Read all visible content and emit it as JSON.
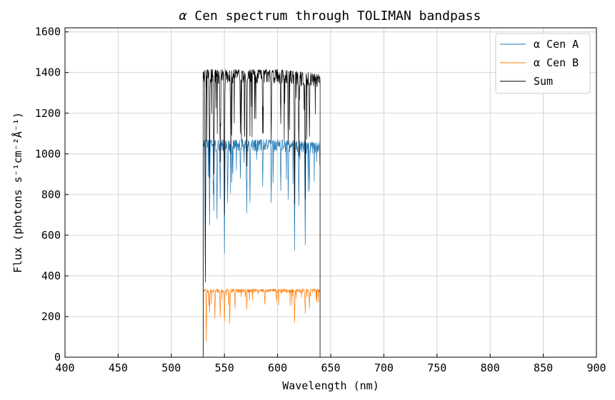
{
  "chart_data": {
    "type": "line",
    "title_greek": "α",
    "title": "Cen spectrum through TOLIMAN bandpass",
    "xlabel": "Wavelength (nm)",
    "ylabel": "Flux (photons s⁻¹cm⁻²Å⁻¹)",
    "xlim": [
      400,
      900
    ],
    "ylim": [
      0,
      1620
    ],
    "x_ticks": [
      400,
      450,
      500,
      550,
      600,
      650,
      700,
      750,
      800,
      850,
      900
    ],
    "y_ticks": [
      0,
      200,
      400,
      600,
      800,
      1000,
      1200,
      1400,
      1600
    ],
    "grid": true,
    "legend_position": "top-right",
    "band": [
      530,
      640
    ],
    "series": [
      {
        "name": "α Cen A",
        "color": "#1f77b4",
        "baseline": 1070,
        "noise": 60,
        "dips": [
          [
            532,
            400
          ],
          [
            536,
            650
          ],
          [
            540,
            720
          ],
          [
            543,
            680
          ],
          [
            546,
            780
          ],
          [
            550,
            510
          ],
          [
            553,
            760
          ],
          [
            557,
            860
          ],
          [
            565,
            880
          ],
          [
            571,
            710
          ],
          [
            574,
            760
          ],
          [
            586,
            840
          ],
          [
            594,
            760
          ],
          [
            603,
            820
          ],
          [
            610,
            780
          ],
          [
            616,
            530
          ],
          [
            620,
            750
          ],
          [
            626,
            560
          ],
          [
            630,
            830
          ]
        ]
      },
      {
        "name": "α Cen B",
        "color": "#ff7f0e",
        "baseline": 335,
        "noise": 18,
        "dips": [
          [
            533,
            75
          ],
          [
            536,
            220
          ],
          [
            541,
            190
          ],
          [
            546,
            200
          ],
          [
            550,
            175
          ],
          [
            555,
            165
          ],
          [
            560,
            240
          ],
          [
            571,
            235
          ],
          [
            588,
            260
          ],
          [
            599,
            275
          ],
          [
            616,
            170
          ],
          [
            626,
            215
          ],
          [
            630,
            240
          ]
        ]
      },
      {
        "name": "Sum",
        "color": "#000000",
        "baseline": 1415,
        "noise": 70,
        "dips": [
          [
            532,
            370
          ],
          [
            536,
            880
          ],
          [
            540,
            900
          ],
          [
            546,
            960
          ],
          [
            550,
            700
          ],
          [
            556,
            1000
          ],
          [
            565,
            1100
          ],
          [
            571,
            940
          ],
          [
            586,
            1100
          ],
          [
            594,
            1050
          ],
          [
            603,
            1150
          ],
          [
            610,
            1050
          ],
          [
            616,
            760
          ],
          [
            620,
            1000
          ],
          [
            626,
            790
          ],
          [
            630,
            1100
          ]
        ]
      }
    ]
  }
}
